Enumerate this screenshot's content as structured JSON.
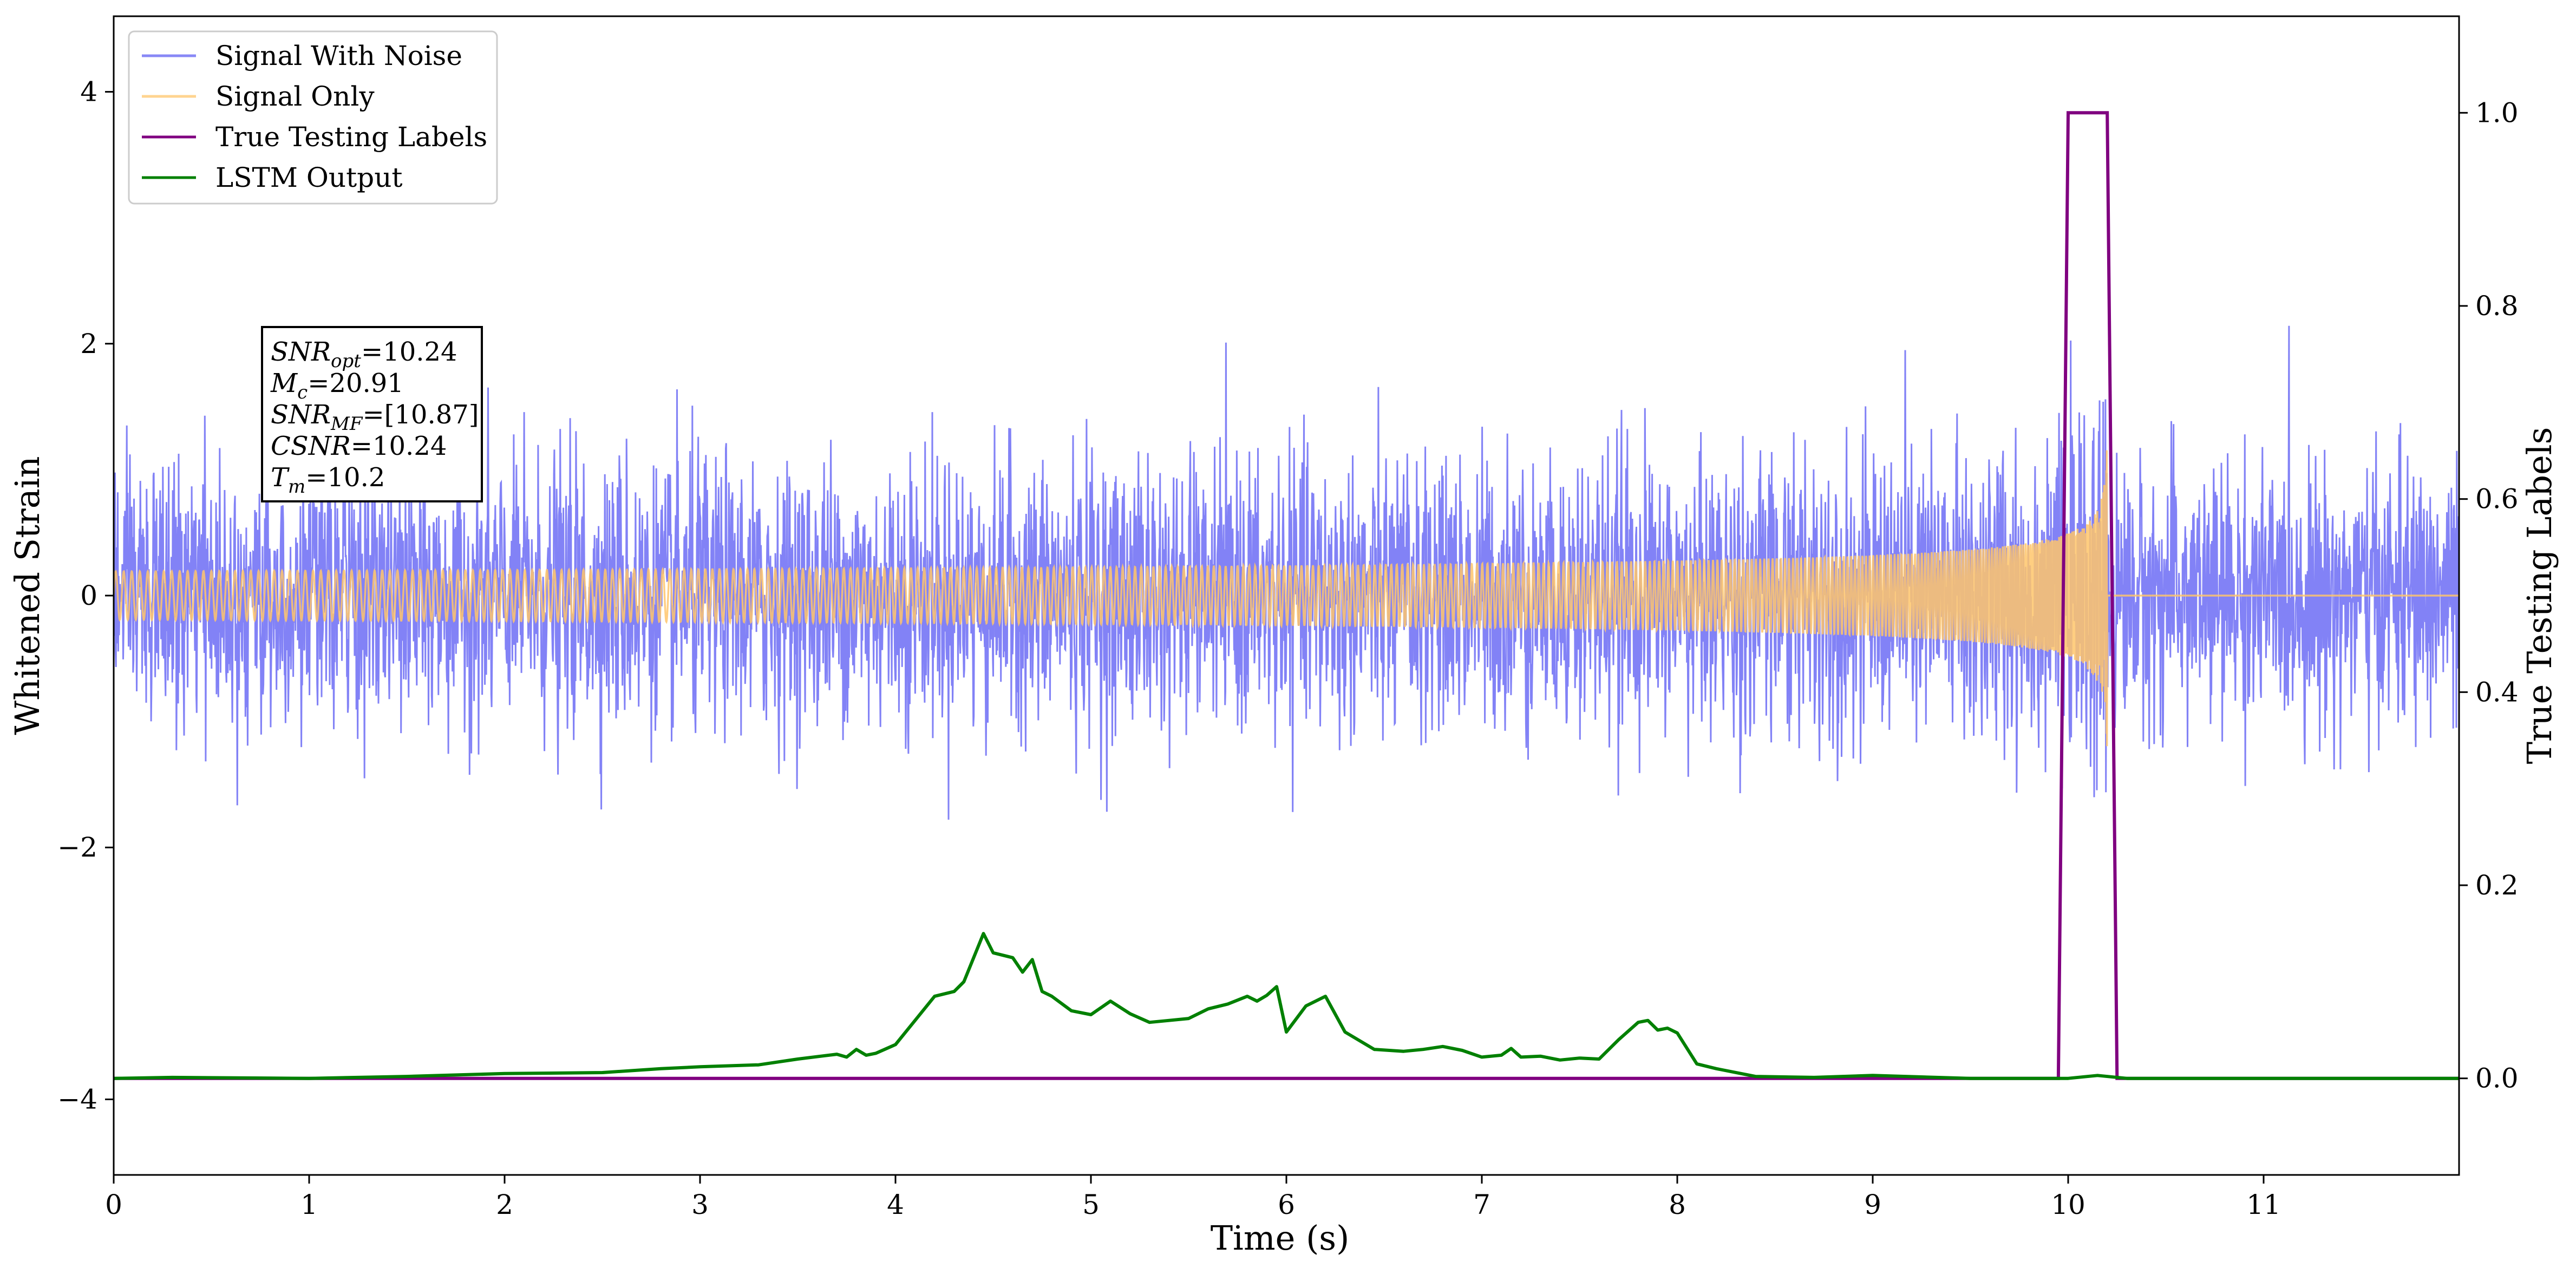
{
  "chart_data": {
    "type": "line",
    "xlabel": "Time (s)",
    "ylabel": "Whitened Strain",
    "ylabel_right": "True Testing Labels",
    "xlim": [
      0,
      12
    ],
    "ylim": [
      -4.6,
      4.6
    ],
    "ylim_right": [
      -0.1,
      1.1
    ],
    "x_ticks": [
      0,
      1,
      2,
      3,
      4,
      5,
      6,
      7,
      8,
      9,
      10,
      11
    ],
    "x_tick_labels": [
      "0",
      "1",
      "2",
      "3",
      "4",
      "5",
      "6",
      "7",
      "8",
      "9",
      "10",
      "11"
    ],
    "y_ticks": [
      -4,
      -2,
      0,
      2,
      4
    ],
    "y_tick_labels": [
      "−4",
      "−2",
      "0",
      "2",
      "4"
    ],
    "y_ticks_right": [
      0.0,
      0.2,
      0.4,
      0.6,
      0.8,
      1.0
    ],
    "y_tick_labels_right": [
      "0.0",
      "0.2",
      "0.4",
      "0.6",
      "0.8",
      "1.0"
    ],
    "grid": false,
    "legend_position": "top-left",
    "colors": {
      "noise": "#7b7bf5",
      "signal": "#ffc56b",
      "labels": "#800080",
      "lstm": "#008000",
      "axis": "#000000"
    },
    "series": [
      {
        "name": "Signal With Noise",
        "axis": "left",
        "description_type": "noise_band",
        "amplitude_typical": 0.9,
        "amplitude_max": 2.3,
        "x_range": [
          0,
          12
        ]
      },
      {
        "name": "Signal Only",
        "axis": "left",
        "description_type": "chirp",
        "x_range": [
          0,
          12
        ],
        "merger_time": 10.2,
        "peak_amplitude": 1.3
      },
      {
        "name": "True Testing Labels",
        "axis": "right",
        "x": [
          0,
          9.95,
          10.0,
          10.2,
          10.25,
          12
        ],
        "y": [
          0,
          0,
          1,
          1,
          0,
          0
        ]
      },
      {
        "name": "LSTM Output",
        "axis": "right",
        "x": [
          0,
          0.3,
          1.0,
          1.5,
          2.0,
          2.5,
          2.8,
          3.0,
          3.3,
          3.5,
          3.7,
          3.75,
          3.8,
          3.85,
          3.9,
          4.0,
          4.1,
          4.2,
          4.3,
          4.35,
          4.45,
          4.5,
          4.6,
          4.65,
          4.7,
          4.75,
          4.8,
          4.9,
          5.0,
          5.1,
          5.2,
          5.3,
          5.4,
          5.5,
          5.6,
          5.7,
          5.8,
          5.85,
          5.9,
          5.95,
          6.0,
          6.1,
          6.2,
          6.3,
          6.45,
          6.6,
          6.7,
          6.8,
          6.9,
          7.0,
          7.1,
          7.15,
          7.2,
          7.3,
          7.4,
          7.5,
          7.6,
          7.7,
          7.8,
          7.85,
          7.9,
          7.95,
          8.0,
          8.1,
          8.2,
          8.4,
          8.7,
          9.0,
          9.5,
          10.0,
          10.15,
          10.3,
          11.0,
          12.0
        ],
        "y": [
          0.0,
          0.001,
          0.0,
          0.002,
          0.005,
          0.006,
          0.01,
          0.012,
          0.014,
          0.02,
          0.025,
          0.022,
          0.03,
          0.024,
          0.026,
          0.035,
          0.06,
          0.085,
          0.09,
          0.1,
          0.15,
          0.13,
          0.125,
          0.11,
          0.123,
          0.09,
          0.085,
          0.07,
          0.066,
          0.08,
          0.067,
          0.058,
          0.06,
          0.062,
          0.072,
          0.077,
          0.085,
          0.08,
          0.086,
          0.095,
          0.048,
          0.075,
          0.085,
          0.048,
          0.03,
          0.028,
          0.03,
          0.033,
          0.029,
          0.022,
          0.024,
          0.031,
          0.022,
          0.023,
          0.019,
          0.021,
          0.02,
          0.04,
          0.058,
          0.06,
          0.05,
          0.052,
          0.047,
          0.015,
          0.01,
          0.002,
          0.001,
          0.003,
          0.0,
          0.0,
          0.003,
          0.0,
          0.0,
          0.0
        ]
      }
    ],
    "annotation": {
      "lines": [
        {
          "base": "SNR",
          "sub": "opt",
          "value": "=10.24"
        },
        {
          "base": "M",
          "sub": "c",
          "value": "=20.91"
        },
        {
          "base": "SNR",
          "sub": "MF",
          "value": "=[10.87]"
        },
        {
          "base": "CSNR",
          "sub": "",
          "value": "=10.24"
        },
        {
          "base": "T",
          "sub": "m",
          "value": "=10.2"
        }
      ]
    }
  }
}
